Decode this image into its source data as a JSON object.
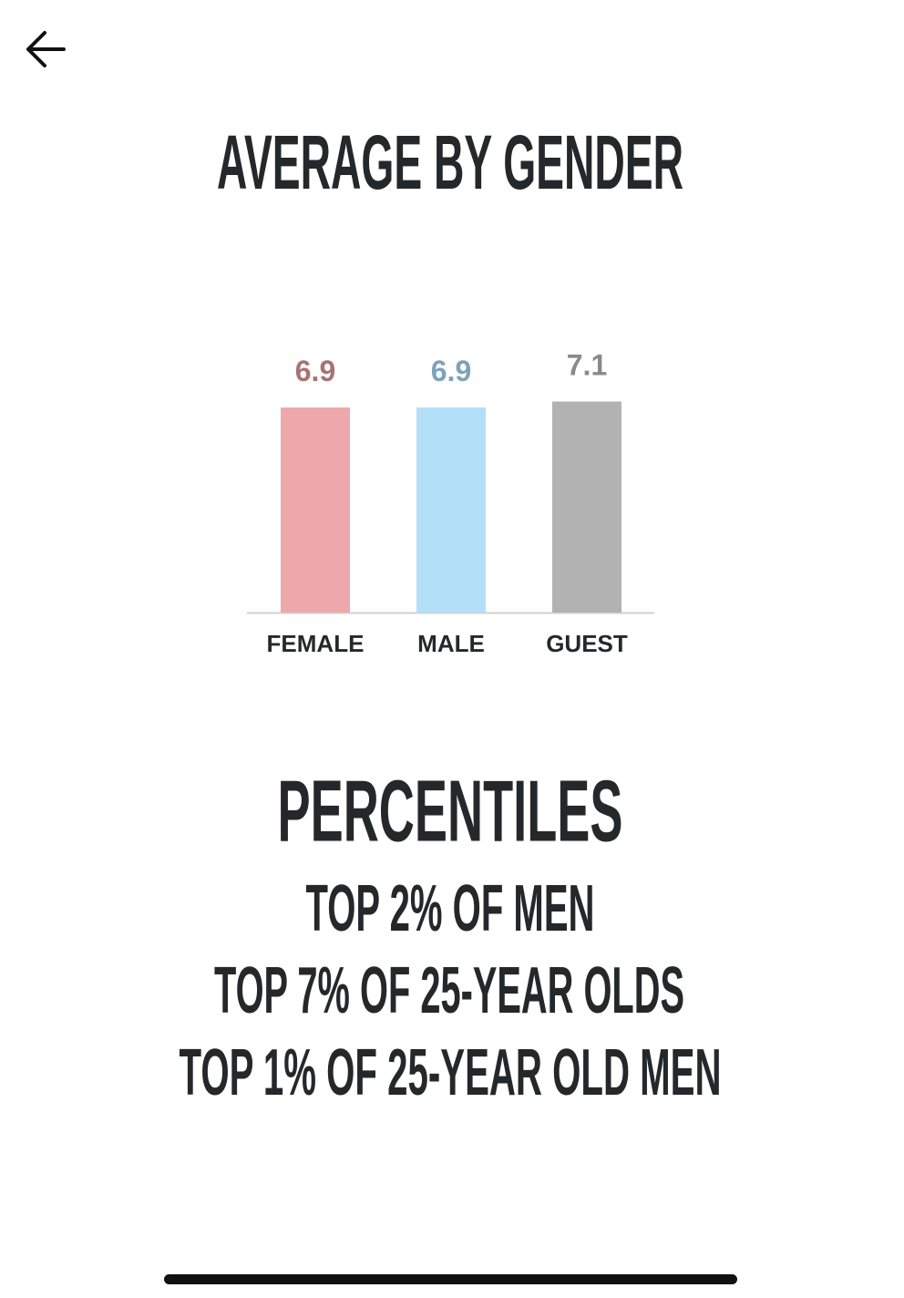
{
  "chart_data": {
    "type": "bar",
    "title": "AVERAGE BY GENDER",
    "categories": [
      "FEMALE",
      "MALE",
      "GUEST"
    ],
    "values": [
      6.9,
      6.9,
      7.1
    ],
    "colors": [
      "#eca8aa",
      "#b3dff9",
      "#b2b2b2"
    ],
    "value_label_colors": [
      "#a87373",
      "#7ea2bb",
      "#8a8a8a"
    ],
    "ylim": [
      0,
      10
    ]
  },
  "percentiles": {
    "title": "PERCENTILES",
    "lines": [
      "TOP 2% OF MEN",
      "TOP 7% OF 25-YEAR OLDS",
      "TOP 1% OF 25-YEAR OLD MEN"
    ]
  }
}
